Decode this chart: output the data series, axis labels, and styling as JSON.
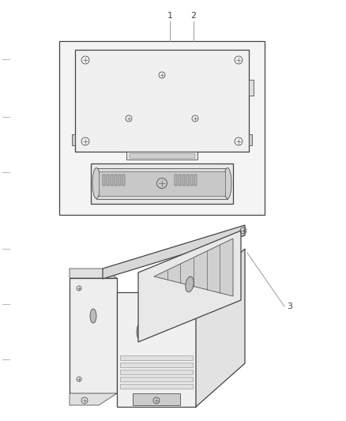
{
  "background_color": "#ffffff",
  "line_color": "#444444",
  "gray1": "#cccccc",
  "gray2": "#e8e8e8",
  "gray3": "#d8d8d8",
  "gray4": "#b8b8b8",
  "fig_width": 4.38,
  "fig_height": 5.33,
  "dpi": 100,
  "label1": "1",
  "label2": "2",
  "label3": "3"
}
